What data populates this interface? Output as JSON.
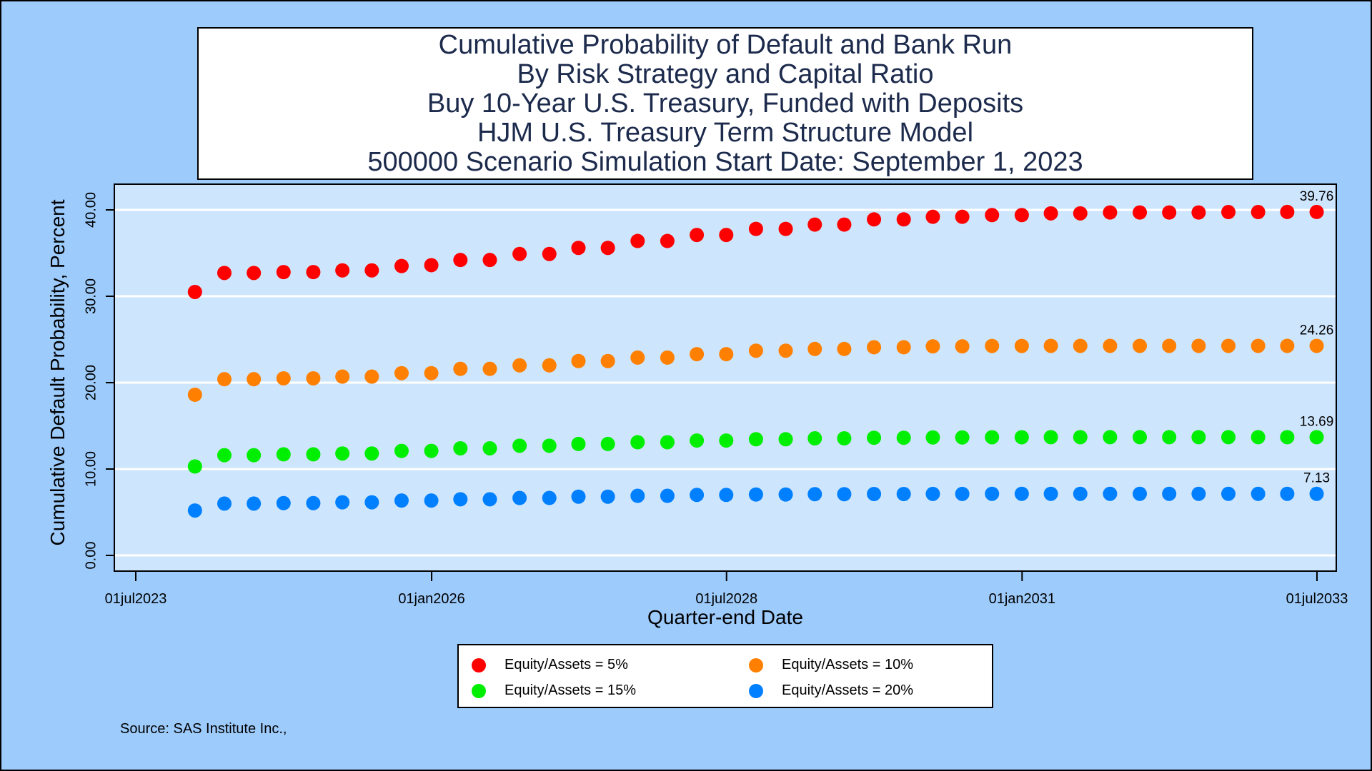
{
  "chart_data": {
    "type": "scatter",
    "title_lines": [
      "Cumulative Probability of Default and Bank Run",
      "By Risk Strategy and Capital Ratio",
      "Buy 10-Year U.S. Treasury, Funded with Deposits",
      "HJM U.S. Treasury Term Structure Model",
      "500000 Scenario Simulation Start Date: September 1, 2023"
    ],
    "xlabel": "Quarter-end Date",
    "ylabel": "Cumulative Default Probability, Percent",
    "x_ticks": [
      "01jul2023",
      "01jan2026",
      "01jul2028",
      "01jan2031",
      "01jul2033"
    ],
    "x_range": [
      "2023-07-01",
      "2033-07-01"
    ],
    "y_ticks": [
      "0.00",
      "10.00",
      "20.00",
      "30.00",
      "40.00"
    ],
    "ylim": [
      0,
      40
    ],
    "grid": "horizontal",
    "legend_position": "bottom",
    "x": [
      "2023-12-31",
      "2024-03-31",
      "2024-06-30",
      "2024-09-30",
      "2024-12-31",
      "2025-03-31",
      "2025-06-30",
      "2025-09-30",
      "2025-12-31",
      "2026-03-31",
      "2026-06-30",
      "2026-09-30",
      "2026-12-31",
      "2027-03-31",
      "2027-06-30",
      "2027-09-30",
      "2027-12-31",
      "2028-03-31",
      "2028-06-30",
      "2028-09-30",
      "2028-12-31",
      "2029-03-31",
      "2029-06-30",
      "2029-09-30",
      "2029-12-31",
      "2030-03-31",
      "2030-06-30",
      "2030-09-30",
      "2030-12-31",
      "2031-03-31",
      "2031-06-30",
      "2031-09-30",
      "2031-12-31",
      "2032-03-31",
      "2032-06-30",
      "2032-09-30",
      "2032-12-31",
      "2033-03-31",
      "2033-06-30"
    ],
    "series": [
      {
        "name": "Equity/Assets = 5%",
        "color": "#ff0000",
        "end_label": "39.76",
        "values": [
          30.5,
          32.7,
          32.7,
          32.8,
          32.8,
          33.0,
          33.0,
          33.5,
          33.6,
          34.2,
          34.2,
          34.9,
          34.9,
          35.6,
          35.6,
          36.4,
          36.4,
          37.1,
          37.1,
          37.8,
          37.8,
          38.3,
          38.3,
          38.9,
          38.9,
          39.2,
          39.2,
          39.4,
          39.4,
          39.6,
          39.6,
          39.7,
          39.7,
          39.7,
          39.7,
          39.75,
          39.75,
          39.76,
          39.76
        ]
      },
      {
        "name": "Equity/Assets = 10%",
        "color": "#ff8000",
        "end_label": "24.26",
        "values": [
          18.6,
          20.4,
          20.4,
          20.5,
          20.5,
          20.7,
          20.7,
          21.1,
          21.1,
          21.6,
          21.6,
          22.0,
          22.0,
          22.5,
          22.5,
          22.9,
          22.9,
          23.3,
          23.3,
          23.7,
          23.7,
          23.9,
          23.9,
          24.1,
          24.1,
          24.2,
          24.2,
          24.25,
          24.25,
          24.26,
          24.26,
          24.26,
          24.26,
          24.26,
          24.26,
          24.26,
          24.26,
          24.26,
          24.26
        ]
      },
      {
        "name": "Equity/Assets = 15%",
        "color": "#00ee00",
        "end_label": "13.69",
        "values": [
          10.3,
          11.6,
          11.6,
          11.7,
          11.7,
          11.8,
          11.8,
          12.1,
          12.1,
          12.4,
          12.4,
          12.7,
          12.7,
          12.9,
          12.9,
          13.1,
          13.1,
          13.3,
          13.3,
          13.45,
          13.45,
          13.55,
          13.55,
          13.62,
          13.62,
          13.66,
          13.66,
          13.68,
          13.68,
          13.69,
          13.69,
          13.69,
          13.69,
          13.69,
          13.69,
          13.69,
          13.69,
          13.69,
          13.69
        ]
      },
      {
        "name": "Equity/Assets = 20%",
        "color": "#0080ff",
        "end_label": "7.13",
        "values": [
          5.2,
          6.0,
          6.0,
          6.05,
          6.05,
          6.15,
          6.15,
          6.35,
          6.35,
          6.5,
          6.5,
          6.65,
          6.65,
          6.8,
          6.8,
          6.9,
          6.9,
          7.0,
          7.0,
          7.05,
          7.05,
          7.09,
          7.09,
          7.11,
          7.11,
          7.12,
          7.12,
          7.13,
          7.13,
          7.13,
          7.13,
          7.13,
          7.13,
          7.13,
          7.13,
          7.13,
          7.13,
          7.13,
          7.13
        ]
      }
    ]
  },
  "colors": {
    "background": "#9dcbfc",
    "plot_area": "#cde5fd",
    "gridline": "#ffffff"
  },
  "source": "Source: SAS Institute Inc.,"
}
